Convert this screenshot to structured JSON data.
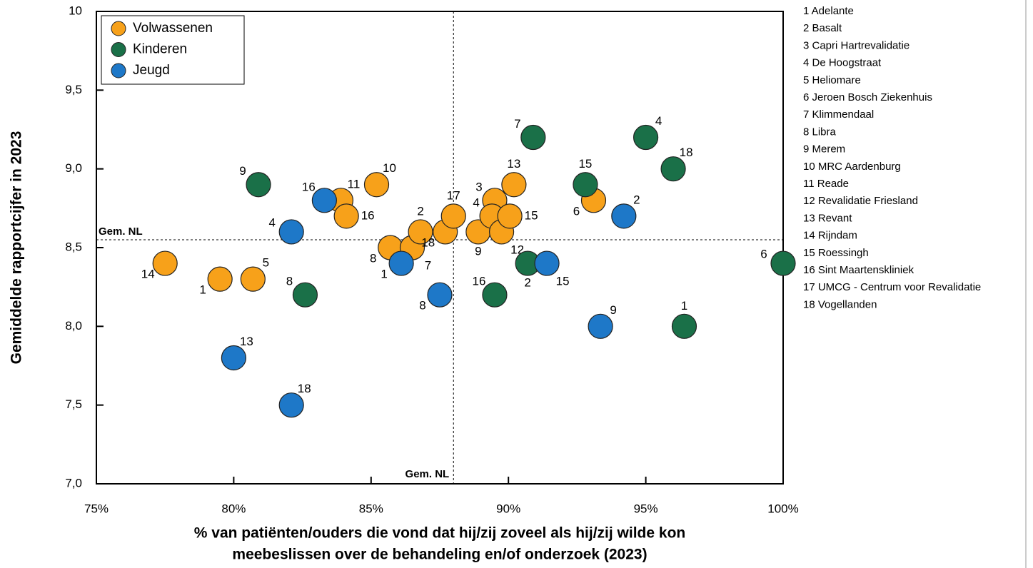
{
  "chart_data": {
    "type": "scatter",
    "xlabel": [
      "% van patiënten/ouders die vond dat hij/zij zoveel als hij/zij wilde kon",
      "meebeslissen over de behandeling en/of onderzoek (2023)"
    ],
    "ylabel": "Gemiddelde rapportcijfer in 2023",
    "xlim": [
      75,
      100
    ],
    "ylim": [
      7,
      10
    ],
    "xticks": [
      {
        "value": 75,
        "label": "75%"
      },
      {
        "value": 80,
        "label": "80%"
      },
      {
        "value": 85,
        "label": "85%"
      },
      {
        "value": 90,
        "label": "90%"
      },
      {
        "value": 95,
        "label": "95%"
      },
      {
        "value": 100,
        "label": "100%"
      }
    ],
    "yticks": [
      {
        "value": 7,
        "label": "7,0"
      },
      {
        "value": 7.5,
        "label": "7,5"
      },
      {
        "value": 8,
        "label": "8,0"
      },
      {
        "value": 8.5,
        "label": "8,5"
      },
      {
        "value": 9,
        "label": "9,0"
      },
      {
        "value": 9.5,
        "label": "9,5"
      },
      10
    ],
    "x_reference": {
      "value": 88,
      "label": "Gem. NL"
    },
    "y_reference": {
      "value": 8.55,
      "label": "Gem. NL"
    },
    "legend": "top-left",
    "series": [
      {
        "name": "Volwassenen",
        "color": "#f7a11a",
        "labels": [
          "14",
          "1",
          "5",
          "11",
          "16",
          "10",
          "8",
          "7",
          "2",
          "18",
          "17",
          "9",
          "3",
          "4",
          "12",
          "15",
          "13",
          "6"
        ],
        "x": [
          77.5,
          79.5,
          80.7,
          83.9,
          84.1,
          85.2,
          85.7,
          86.5,
          86.8,
          87.7,
          88.0,
          88.9,
          89.5,
          89.4,
          89.75,
          90.05,
          90.2,
          93.1
        ],
        "values": [
          8.4,
          8.3,
          8.3,
          8.8,
          8.7,
          8.9,
          8.5,
          8.5,
          8.6,
          8.6,
          8.7,
          8.6,
          8.8,
          8.7,
          8.6,
          8.7,
          8.9,
          8.8
        ]
      },
      {
        "name": "Kinderen",
        "color": "#1a7048",
        "labels": [
          "9",
          "8",
          "16",
          "2",
          "7",
          "15",
          "4",
          "18",
          "1",
          "6"
        ],
        "x": [
          80.9,
          82.6,
          89.5,
          90.7,
          90.9,
          92.8,
          95.0,
          96.0,
          96.4,
          100
        ],
        "values": [
          8.9,
          8.2,
          8.2,
          8.4,
          9.2,
          8.9,
          9.2,
          9.0,
          8.0,
          8.4
        ]
      },
      {
        "name": "Jeugd",
        "color": "#1e78c8",
        "labels": [
          "13",
          "18",
          "4",
          "16",
          "1",
          "8",
          "15",
          "2",
          "9"
        ],
        "x": [
          80.0,
          82.1,
          82.1,
          83.3,
          86.1,
          87.5,
          91.4,
          94.2,
          93.35
        ],
        "values": [
          7.8,
          7.5,
          8.6,
          8.8,
          8.4,
          8.2,
          8.4,
          8.7,
          8.0
        ]
      }
    ],
    "names": [
      "1 Adelante",
      "2 Basalt",
      "3 Capri Hartrevalidatie",
      "4 De Hoogstraat",
      "5 Heliomare",
      "6 Jeroen Bosch Ziekenhuis",
      "7 Klimmendaal",
      "8 Libra",
      "9 Merem",
      "10 MRC Aardenburg",
      "11 Reade",
      "12 Revalidatie Friesland",
      "13 Revant",
      "14 Rijndam",
      "15 Roessingh",
      "16 Sint Maartenskliniek",
      "17 UMCG - Centrum voor Revalidatie",
      "18 Vogellanden"
    ]
  }
}
